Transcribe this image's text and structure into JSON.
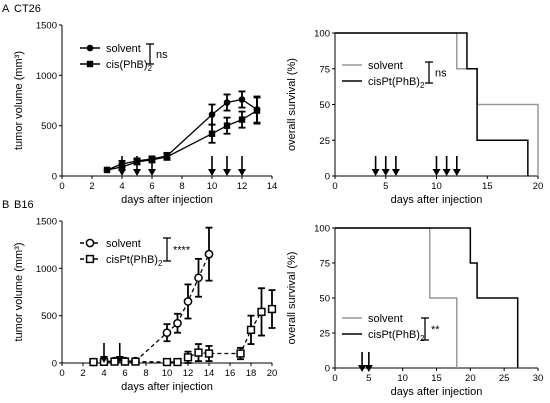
{
  "panel_labels": {
    "a": "A",
    "b": "B"
  },
  "cell_lines": {
    "a": "CT26",
    "b": "B16"
  },
  "stat_labels": {
    "a_tumor": "ns",
    "a_survival": "ns",
    "b_tumor": "****",
    "b_survival": "**"
  },
  "chart_data": [
    {
      "id": "a_tumor",
      "type": "line",
      "xlabel": "days after injection",
      "ylabel": "tumor volume (mm³)",
      "xlim": [
        0,
        14
      ],
      "ylim": [
        0,
        1500
      ],
      "xticks": [
        0,
        2,
        4,
        6,
        8,
        10,
        12,
        14
      ],
      "yticks": [
        0,
        500,
        1000,
        1500
      ],
      "grid": false,
      "legend": "top-left",
      "arrows_x": [
        4,
        5,
        6,
        10,
        11,
        12
      ],
      "series": [
        {
          "name": "solvent",
          "marker": "filled-circle",
          "line": "solid",
          "x": [
            3,
            4,
            5,
            6,
            7,
            10,
            11,
            12,
            13
          ],
          "y": [
            60,
            120,
            150,
            170,
            200,
            610,
            730,
            760,
            660
          ],
          "err": [
            0,
            30,
            25,
            25,
            30,
            100,
            80,
            80,
            130
          ]
        },
        {
          "name": "cis(PhB)",
          "name_sub": "2",
          "marker": "filled-square",
          "line": "solid",
          "x": [
            3,
            4,
            5,
            6,
            7,
            10,
            11,
            12,
            13
          ],
          "y": [
            60,
            90,
            140,
            160,
            190,
            420,
            500,
            560,
            650
          ],
          "err": [
            0,
            30,
            25,
            25,
            30,
            90,
            80,
            80,
            130
          ]
        }
      ]
    },
    {
      "id": "a_survival",
      "type": "line",
      "xlabel": "days after injection",
      "ylabel": "overall survival (%)",
      "xlim": [
        0,
        20
      ],
      "ylim": [
        0,
        100
      ],
      "xticks": [
        0,
        5,
        10,
        15,
        20
      ],
      "yticks": [
        0,
        25,
        50,
        75,
        100
      ],
      "grid": false,
      "legend": "top-left",
      "arrows_x": [
        4,
        5,
        6,
        10,
        11,
        12
      ],
      "series": [
        {
          "name": "solvent",
          "color": "#999999",
          "line": "step",
          "x": [
            0,
            12,
            12,
            14,
            14,
            20,
            20
          ],
          "y": [
            100,
            100,
            75,
            75,
            50,
            50,
            0
          ]
        },
        {
          "name": "cisPt(PhB)",
          "name_sub": "2",
          "color": "#000000",
          "line": "step",
          "x": [
            0,
            13,
            13,
            14,
            14,
            19,
            19
          ],
          "y": [
            100,
            100,
            75,
            75,
            25,
            25,
            0
          ]
        }
      ]
    },
    {
      "id": "b_tumor",
      "type": "line",
      "xlabel": "days after injection",
      "ylabel": "tumor volume (mm³)",
      "xlim": [
        0,
        20
      ],
      "ylim": [
        0,
        1500
      ],
      "xticks": [
        0,
        2,
        4,
        6,
        8,
        10,
        12,
        14,
        16,
        18,
        20
      ],
      "yticks": [
        0,
        500,
        1000,
        1500
      ],
      "grid": false,
      "legend": "top-left",
      "arrows_x": [
        4,
        5.5
      ],
      "series": [
        {
          "name": "solvent",
          "marker": "open-circle",
          "line": "dashed",
          "x": [
            3,
            4,
            5,
            6,
            7,
            10,
            11,
            12,
            13,
            14
          ],
          "y": [
            10,
            15,
            20,
            20,
            20,
            320,
            420,
            650,
            900,
            1150
          ],
          "err": [
            0,
            0,
            0,
            0,
            0,
            90,
            100,
            180,
            200,
            280
          ]
        },
        {
          "name": "cisPt(PhB)",
          "name_sub": "2",
          "marker": "open-square",
          "line": "dashed",
          "x": [
            3,
            4,
            5,
            6,
            7,
            10,
            11,
            12,
            13,
            14,
            17,
            18,
            19,
            20
          ],
          "y": [
            10,
            12,
            15,
            15,
            15,
            10,
            10,
            60,
            110,
            100,
            100,
            350,
            540,
            570
          ],
          "err": [
            0,
            0,
            0,
            0,
            0,
            0,
            0,
            60,
            90,
            80,
            60,
            150,
            250,
            200
          ]
        }
      ]
    },
    {
      "id": "b_survival",
      "type": "line",
      "xlabel": "days after injection",
      "ylabel": "overall survival (%)",
      "xlim": [
        0,
        30
      ],
      "ylim": [
        0,
        100
      ],
      "xticks": [
        0,
        5,
        10,
        15,
        20,
        25,
        30
      ],
      "yticks": [
        0,
        25,
        50,
        75,
        100
      ],
      "grid": false,
      "legend": "bottom-left",
      "arrows_x": [
        4,
        5
      ],
      "series": [
        {
          "name": "solvent",
          "color": "#999999",
          "line": "step",
          "x": [
            0,
            14,
            14,
            18,
            18
          ],
          "y": [
            100,
            100,
            50,
            50,
            0
          ]
        },
        {
          "name": "cisPt(PhB)",
          "name_sub": "2",
          "color": "#000000",
          "line": "step",
          "x": [
            0,
            20,
            20,
            21,
            21,
            27,
            27
          ],
          "y": [
            100,
            100,
            75,
            75,
            50,
            50,
            0
          ]
        }
      ]
    }
  ]
}
